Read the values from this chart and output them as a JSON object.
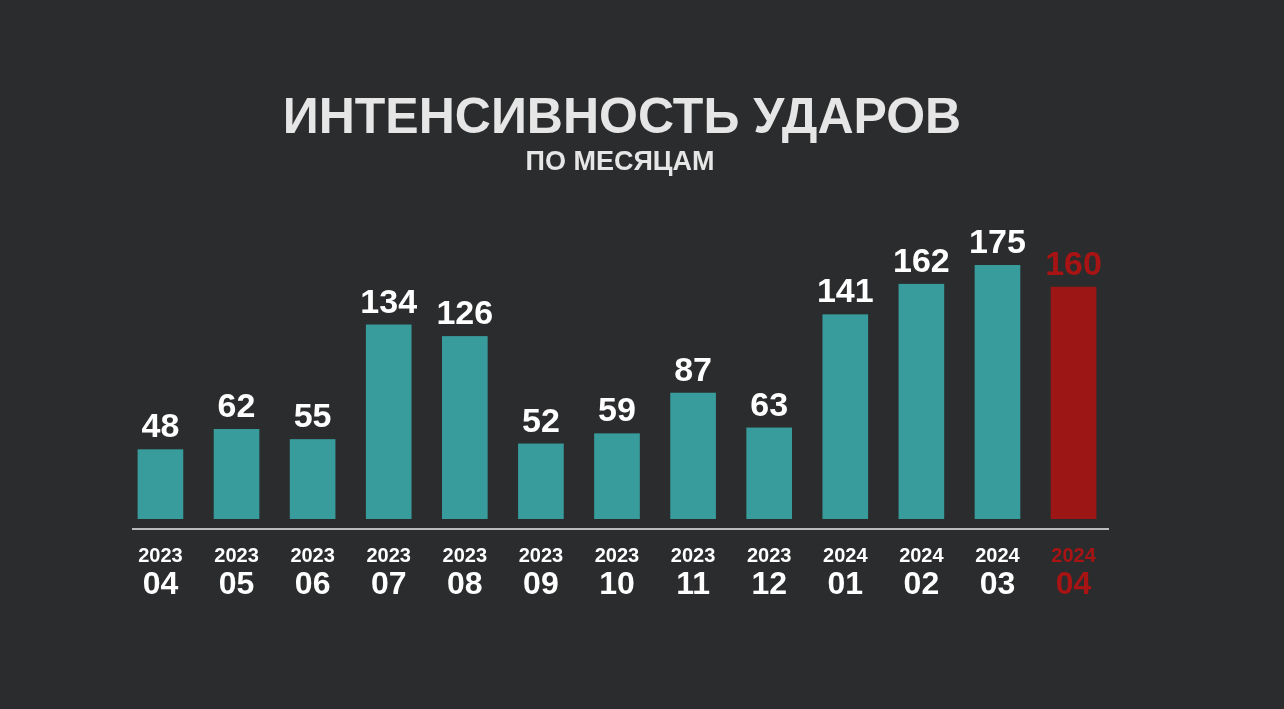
{
  "chart_data": {
    "type": "bar",
    "title": "ИНТЕНСИВНОСТЬ УДАРОВ",
    "subtitle": "ПО МЕСЯЦАМ",
    "categories": [
      "2023\n04",
      "2023\n05",
      "2023\n06",
      "2023\n07",
      "2023\n08",
      "2023\n09",
      "2023\n10",
      "2023\n11",
      "2023\n12",
      "2024\n01",
      "2024\n02",
      "2024\n03",
      "2024\n04"
    ],
    "values": [
      48,
      62,
      55,
      134,
      126,
      52,
      59,
      87,
      63,
      141,
      162,
      175,
      160
    ],
    "colors": [
      "#3aa8a8",
      "#3aa8a8",
      "#3aa8a8",
      "#3aa8a8",
      "#3aa8a8",
      "#3aa8a8",
      "#3aa8a8",
      "#3aa8a8",
      "#3aa8a8",
      "#3aa8a8",
      "#3aa8a8",
      "#3aa8a8",
      "#a81414"
    ],
    "data_labels": true
  }
}
